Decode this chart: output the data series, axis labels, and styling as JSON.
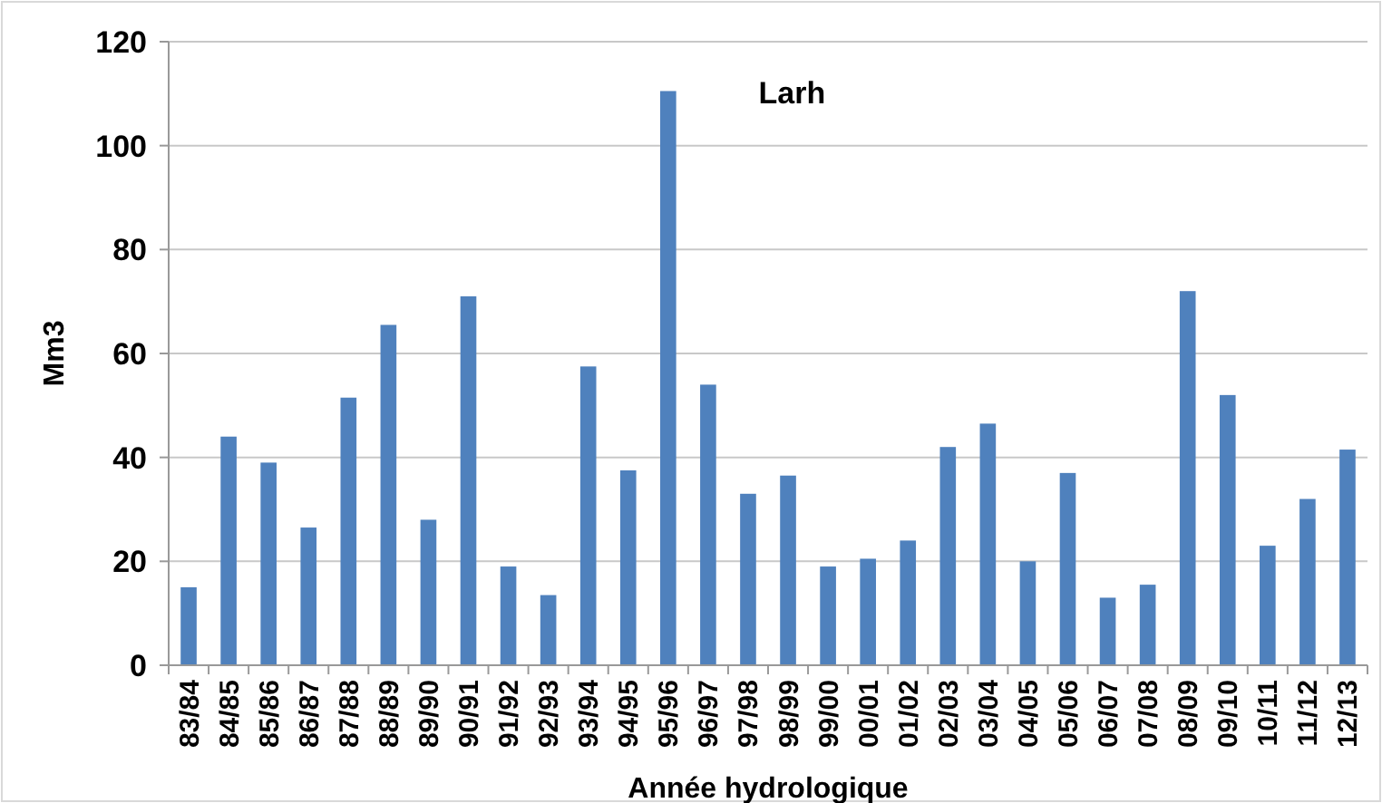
{
  "chart_data": {
    "type": "bar",
    "title": "Larh",
    "xlabel": "Année hydrologique",
    "ylabel": "Mm3",
    "categories": [
      "83/84",
      "84/85",
      "85/86",
      "86/87",
      "87/88",
      "88/89",
      "89/90",
      "90/91",
      "91/92",
      "92/93",
      "93/94",
      "94/95",
      "95/96",
      "96/97",
      "97/98",
      "98/99",
      "99/00",
      "00/01",
      "01/02",
      "02/03",
      "03/04",
      "04/05",
      "05/06",
      "06/07",
      "07/08",
      "08/09",
      "09/10",
      "10/11",
      "11/12",
      "12/13"
    ],
    "values": [
      15,
      44,
      39,
      26.5,
      51.5,
      65.5,
      28,
      71,
      19,
      13.5,
      57.5,
      37.5,
      110.5,
      54,
      33,
      36.5,
      19,
      20.5,
      24,
      42,
      46.5,
      20,
      37,
      13,
      15.5,
      72,
      52,
      23,
      32,
      41.5
    ],
    "color": "#4f81bd",
    "ylim": [
      0,
      120
    ],
    "yticks": [
      0,
      20,
      40,
      60,
      80,
      100,
      120
    ],
    "grid": "y"
  }
}
